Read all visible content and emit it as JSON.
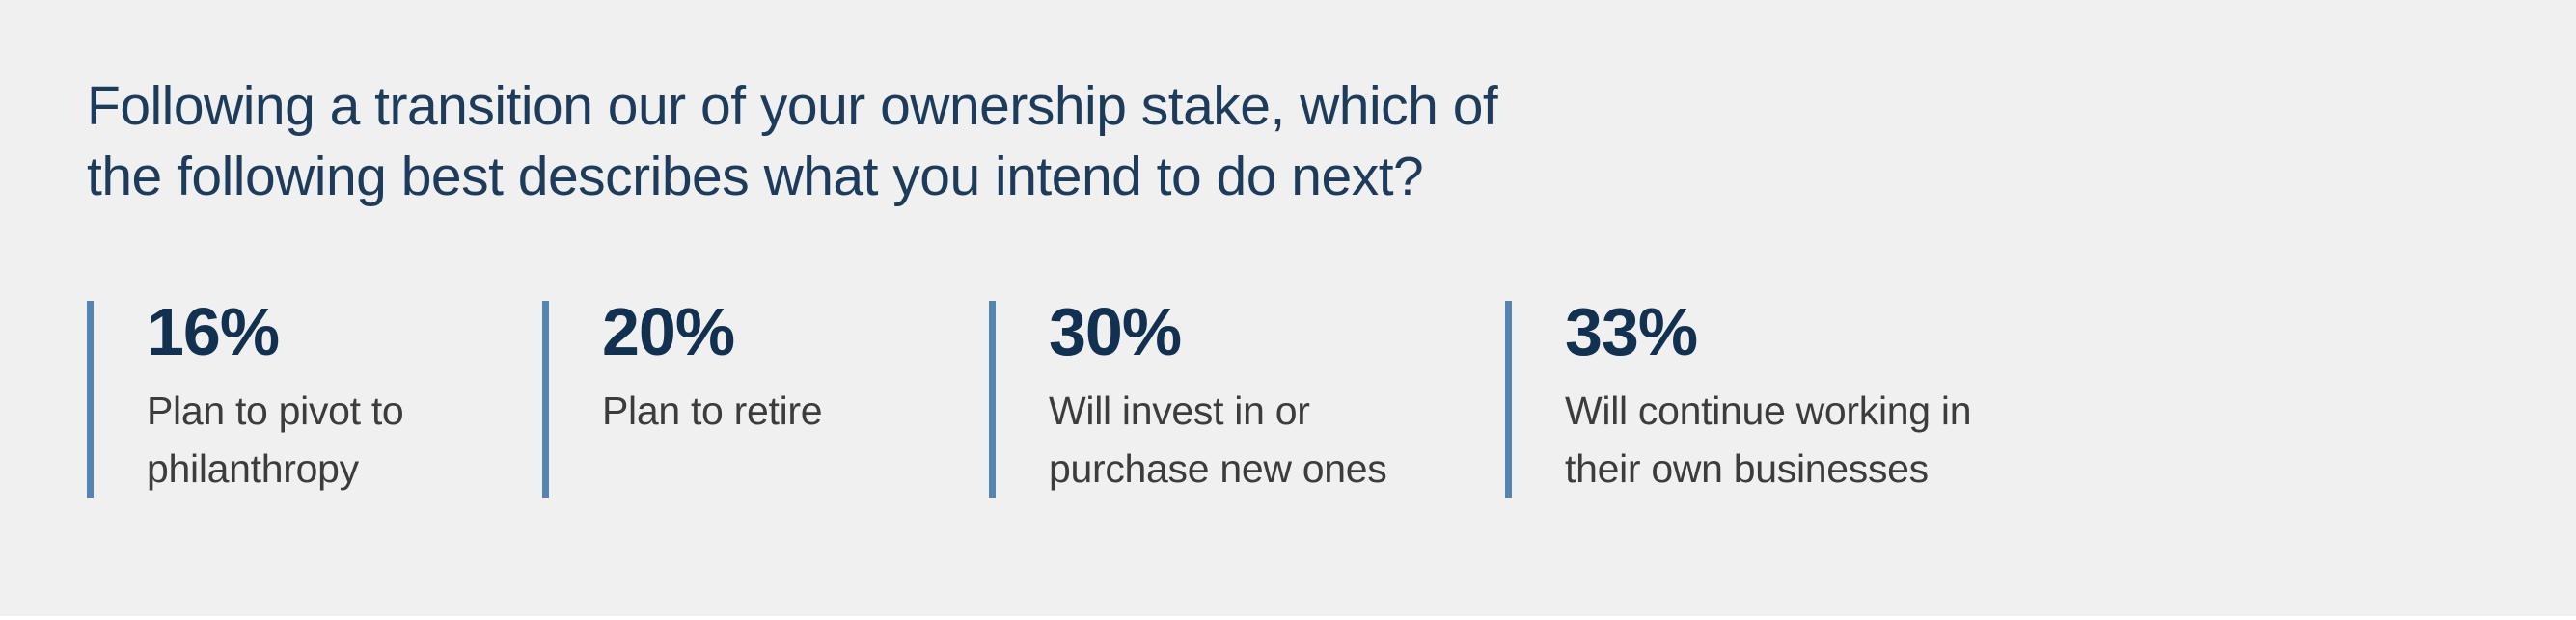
{
  "title": {
    "line1": "Following a transition our of your ownership stake, which of",
    "line2": "the following best describes what you intend to do next?"
  },
  "stats": [
    {
      "value": "16%",
      "label": "Plan to pivot to\nphilanthropy"
    },
    {
      "value": "20%",
      "label": "Plan to retire"
    },
    {
      "value": "30%",
      "label": "Will invest in or\npurchase new ones"
    },
    {
      "value": "33%",
      "label": "Will continue working in\ntheir own businesses"
    }
  ],
  "colors": {
    "background": "#F0F0F1",
    "title_navy": "#1D3C5B",
    "value_navy": "#123050",
    "accent_bar_blue": "#5584B2",
    "label_gray": "#3C3C3C",
    "bottom_strip": "#FFFFFF"
  },
  "chart_data": {
    "type": "table",
    "title": "Following a transition our of your ownership stake, which of the following best describes what you intend to do next?",
    "categories": [
      "Plan to pivot to philanthropy",
      "Plan to retire",
      "Will invest in or purchase new ones",
      "Will continue working in their own businesses"
    ],
    "values": [
      16,
      20,
      30,
      33
    ],
    "unit": "percent",
    "legend_position": "none",
    "grid": false
  }
}
